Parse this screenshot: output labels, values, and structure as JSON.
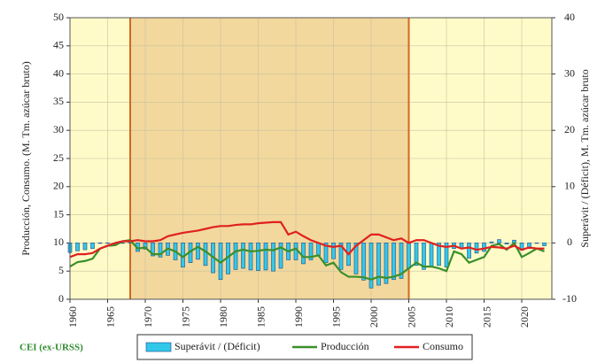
{
  "chart_data": {
    "type": "combo",
    "y_label": "Producción, Consumo. (M. Tm. azúcar bruto)",
    "y2_label": "Superávit / (Déficit), M. Tm. azúcar bruto",
    "note": "CEI (ex-URSS)",
    "x": [
      1960,
      1961,
      1962,
      1963,
      1964,
      1965,
      1966,
      1967,
      1968,
      1969,
      1970,
      1971,
      1972,
      1973,
      1974,
      1975,
      1976,
      1977,
      1978,
      1979,
      1980,
      1981,
      1982,
      1983,
      1984,
      1985,
      1986,
      1987,
      1988,
      1989,
      1990,
      1991,
      1992,
      1993,
      1994,
      1995,
      1996,
      1997,
      1998,
      1999,
      2000,
      2001,
      2002,
      2003,
      2004,
      2005,
      2006,
      2007,
      2008,
      2009,
      2010,
      2011,
      2012,
      2013,
      2014,
      2015,
      2016,
      2017,
      2018,
      2019,
      2020,
      2021,
      2022,
      2023
    ],
    "xlim": [
      1960,
      2024
    ],
    "xticks": [
      1960,
      1965,
      1970,
      1975,
      1980,
      1985,
      1990,
      1995,
      2000,
      2005,
      2010,
      2015,
      2020
    ],
    "ylim": [
      0,
      50
    ],
    "yticks": [
      0,
      5,
      10,
      15,
      20,
      25,
      30,
      35,
      40,
      45,
      50
    ],
    "y2lim": [
      -10,
      40
    ],
    "y2ticks": [
      -10,
      0,
      10,
      20,
      30,
      40
    ],
    "grid": true,
    "shaded_span": [
      1968,
      2005
    ],
    "series": [
      {
        "name": "Superávit / (Déficit)",
        "type": "bar",
        "axis": "y2",
        "color": "#33c8ea",
        "values": [
          -1.7,
          -1.4,
          -1.2,
          -1.0,
          0,
          0,
          -0.4,
          0,
          0.2,
          -1.5,
          -1.1,
          -2.3,
          -2.5,
          -2.2,
          -3.0,
          -4.3,
          -3.5,
          -2.9,
          -4.0,
          -5.3,
          -6.5,
          -5.5,
          -4.7,
          -4.5,
          -4.8,
          -4.9,
          -4.8,
          -5.0,
          -4.5,
          -3.0,
          -3.0,
          -3.7,
          -3.0,
          -2.2,
          -3.5,
          -2.8,
          -4.7,
          -4.0,
          -5.5,
          -6.6,
          -8.0,
          -7.5,
          -7.2,
          -6.5,
          -6.3,
          -4.5,
          -4.0,
          -4.7,
          -4.2,
          -4.0,
          -4.3,
          -1.0,
          -1.0,
          -2.7,
          -1.8,
          -1.5,
          0.2,
          0.6,
          -0.2,
          0.5,
          -1.3,
          -1.0,
          0,
          -0.5
        ]
      },
      {
        "name": "Producción",
        "type": "line",
        "color": "#3a8f2a",
        "values": [
          5.8,
          6.6,
          6.8,
          7.2,
          9.0,
          9.5,
          9.6,
          10.3,
          10.5,
          9.0,
          9.2,
          8.0,
          8.0,
          9.0,
          8.5,
          7.5,
          8.5,
          9.3,
          8.5,
          7.5,
          6.5,
          7.5,
          8.5,
          8.8,
          8.5,
          8.6,
          8.8,
          8.7,
          9.2,
          8.5,
          9.0,
          7.5,
          7.5,
          7.8,
          6.0,
          6.5,
          4.8,
          4.0,
          4.0,
          3.9,
          3.5,
          4.0,
          3.8,
          4.0,
          4.5,
          5.5,
          6.5,
          5.8,
          5.8,
          5.5,
          5.0,
          8.5,
          8.0,
          6.5,
          7.0,
          7.5,
          9.5,
          9.8,
          8.8,
          10.0,
          7.5,
          8.2,
          9.0,
          8.5
        ]
      },
      {
        "name": "Consumo",
        "type": "line",
        "color": "#e02020",
        "values": [
          7.5,
          8.0,
          8.0,
          8.2,
          9.0,
          9.5,
          10.0,
          10.3,
          10.3,
          10.5,
          10.3,
          10.3,
          10.5,
          11.2,
          11.5,
          11.8,
          12.0,
          12.2,
          12.5,
          12.8,
          13.0,
          13.0,
          13.2,
          13.3,
          13.3,
          13.5,
          13.6,
          13.7,
          13.7,
          11.5,
          12.0,
          11.2,
          10.5,
          10.0,
          9.5,
          9.3,
          9.5,
          8.0,
          9.5,
          10.5,
          11.5,
          11.5,
          11.0,
          10.5,
          10.8,
          10.0,
          10.5,
          10.5,
          10.0,
          9.5,
          9.3,
          9.5,
          9.0,
          9.2,
          8.8,
          9.0,
          9.3,
          9.2,
          9.0,
          9.5,
          8.8,
          9.2,
          9.0,
          9.0
        ]
      }
    ]
  }
}
